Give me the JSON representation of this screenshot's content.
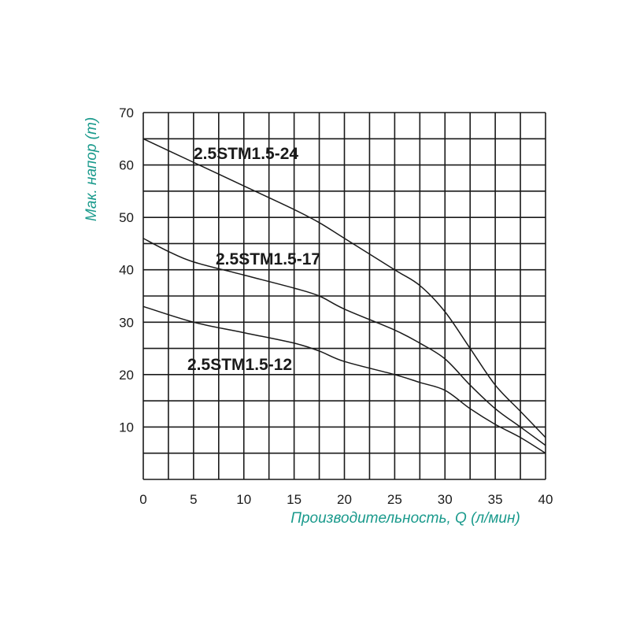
{
  "chart_data": {
    "type": "line",
    "title": "",
    "xlabel": "Производительность, Q (л/мин)",
    "ylabel": "Мак. напор (m)",
    "xlim": [
      0,
      40
    ],
    "ylim": [
      0,
      70
    ],
    "x_ticks": [
      0,
      5,
      10,
      15,
      20,
      25,
      30,
      35,
      40
    ],
    "y_ticks": [
      10,
      20,
      30,
      40,
      50,
      60,
      70
    ],
    "grid": true,
    "grid_x_step": 2.5,
    "grid_y_step": 5,
    "axis_title_color": "#1a9a8c",
    "line_color": "#1a1a1a",
    "series": [
      {
        "name": "2.5STM1.5-24",
        "x": [
          0,
          5,
          10,
          15,
          17.5,
          20,
          25,
          27.5,
          30,
          32.5,
          35,
          37.5,
          40
        ],
        "y": [
          65,
          60.5,
          56,
          51.5,
          49,
          46,
          40,
          37,
          32,
          25,
          18,
          13,
          8
        ]
      },
      {
        "name": "2.5STM1.5-17",
        "x": [
          0,
          2.5,
          5,
          10,
          15,
          17.5,
          20,
          25,
          27.5,
          30,
          32.5,
          35,
          37.5,
          40
        ],
        "y": [
          46,
          43.5,
          41.5,
          39,
          36.5,
          35,
          32.5,
          28.5,
          26,
          23,
          18,
          13.5,
          10,
          6.5
        ]
      },
      {
        "name": "2.5STM1.5-12",
        "x": [
          0,
          5,
          10,
          15,
          17.5,
          20,
          25,
          27.5,
          30,
          32.5,
          35,
          37.5,
          40
        ],
        "y": [
          33,
          30,
          28,
          26,
          24.5,
          22.5,
          20,
          18.5,
          17,
          13.5,
          10.5,
          8,
          5
        ]
      }
    ]
  }
}
